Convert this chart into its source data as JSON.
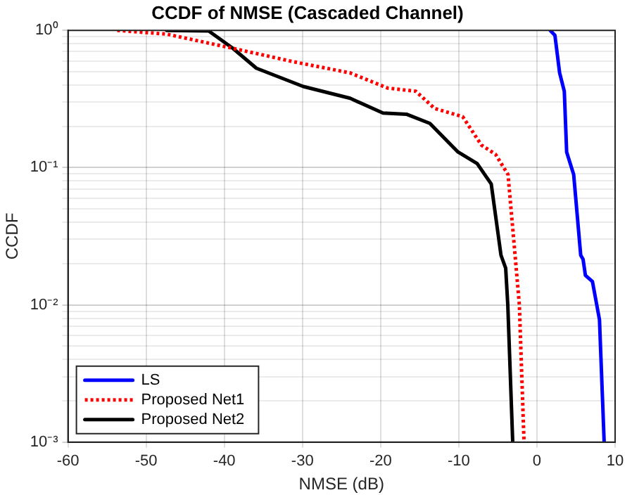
{
  "chart_data": {
    "type": "line",
    "title": "CCDF of NMSE (Cascaded Channel)",
    "xlabel": "NMSE (dB)",
    "ylabel": "CCDF",
    "xlim": [
      -60,
      10
    ],
    "xticks": [
      -60,
      -50,
      -40,
      -30,
      -20,
      -10,
      0,
      10
    ],
    "ylim": [
      0.001,
      1
    ],
    "yticks": [
      {
        "value": 0.001,
        "label": "10⁻³"
      },
      {
        "value": 0.002,
        "label": null
      },
      {
        "value": 0.003,
        "label": null
      },
      {
        "value": 0.004,
        "label": null
      },
      {
        "value": 0.005,
        "label": null
      },
      {
        "value": 0.006,
        "label": null
      },
      {
        "value": 0.007,
        "label": null
      },
      {
        "value": 0.008,
        "label": null
      },
      {
        "value": 0.009,
        "label": null
      },
      {
        "value": 0.01,
        "label": "10⁻²"
      },
      {
        "value": 0.02,
        "label": null
      },
      {
        "value": 0.03,
        "label": null
      },
      {
        "value": 0.04,
        "label": null
      },
      {
        "value": 0.05,
        "label": null
      },
      {
        "value": 0.06,
        "label": null
      },
      {
        "value": 0.07,
        "label": null
      },
      {
        "value": 0.08,
        "label": null
      },
      {
        "value": 0.09,
        "label": null
      },
      {
        "value": 0.1,
        "label": "10⁻¹"
      },
      {
        "value": 0.2,
        "label": null
      },
      {
        "value": 0.3,
        "label": null
      },
      {
        "value": 0.4,
        "label": null
      },
      {
        "value": 0.5,
        "label": null
      },
      {
        "value": 0.6,
        "label": null
      },
      {
        "value": 0.7,
        "label": null
      },
      {
        "value": 0.8,
        "label": null
      },
      {
        "value": 0.9,
        "label": null
      },
      {
        "value": 1,
        "label": "10⁰"
      }
    ],
    "log": "y",
    "grid": true,
    "legend": "bottom left",
    "marker": "none",
    "series": [
      {
        "name": "LS",
        "color": "#0000ff",
        "line_style": "solid",
        "x": [
          1.7,
          2.3,
          2.9,
          3.5,
          3.8,
          4.7,
          5.6,
          5.9,
          6.2,
          7.1,
          8.0,
          8.6
        ],
        "values": [
          1,
          0.92,
          0.49,
          0.36,
          0.13,
          0.089,
          0.023,
          0.0215,
          0.0164,
          0.0148,
          0.0078,
          0.001
        ]
      },
      {
        "name": "Proposed Net1",
        "color": "#ff0000",
        "line_style": "dotted",
        "x": [
          -53.7,
          -47.4,
          -38.9,
          -31.1,
          -23.9,
          -19.1,
          -15.5,
          -13.1,
          -9.5,
          -7.1,
          -5.3,
          -3.7,
          -2.8,
          -2.25,
          -1.65
        ],
        "values": [
          1,
          0.94,
          0.74,
          0.59,
          0.49,
          0.38,
          0.36,
          0.27,
          0.235,
          0.146,
          0.125,
          0.089,
          0.023,
          0.01,
          0.001
        ]
      },
      {
        "name": "Proposed Net2",
        "color": "#000000",
        "line_style": "solid",
        "x": [
          -47.4,
          -42,
          -38.9,
          -35.9,
          -29.9,
          -23.9,
          -19.7,
          -16.7,
          -13.7,
          -10.1,
          -7.65,
          -5.85,
          -4.6,
          -4.0,
          -3.73,
          -3.1
        ],
        "values": [
          1,
          0.99,
          0.74,
          0.53,
          0.39,
          0.32,
          0.25,
          0.245,
          0.21,
          0.13,
          0.107,
          0.076,
          0.023,
          0.0185,
          0.01,
          0.001
        ]
      }
    ]
  }
}
